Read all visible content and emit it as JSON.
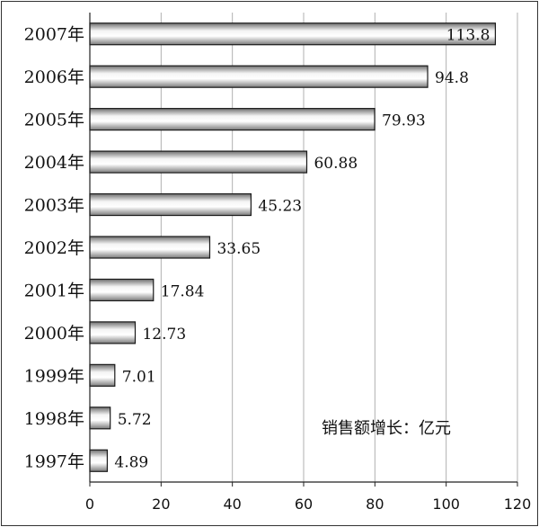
{
  "chart_data": {
    "type": "bar",
    "orientation": "horizontal",
    "categories": [
      "2007年",
      "2006年",
      "2005年",
      "2004年",
      "2003年",
      "2002年",
      "2001年",
      "2000年",
      "1999年",
      "1998年",
      "1997年"
    ],
    "values": [
      113.8,
      94.8,
      79.93,
      60.88,
      45.23,
      33.65,
      17.84,
      12.73,
      7.01,
      5.72,
      4.89
    ],
    "value_labels": [
      "113.8",
      "94.8",
      "79.93",
      "60.88",
      "45.23",
      "33.65",
      "17.84",
      "12.73",
      "7.01",
      "5.72",
      "4.89"
    ],
    "xlim": [
      0,
      120
    ],
    "xticks": [
      "0",
      "20",
      "40",
      "60",
      "80",
      "100",
      "120"
    ],
    "grid": "vertical",
    "annotation": "销售额增长：亿元"
  }
}
